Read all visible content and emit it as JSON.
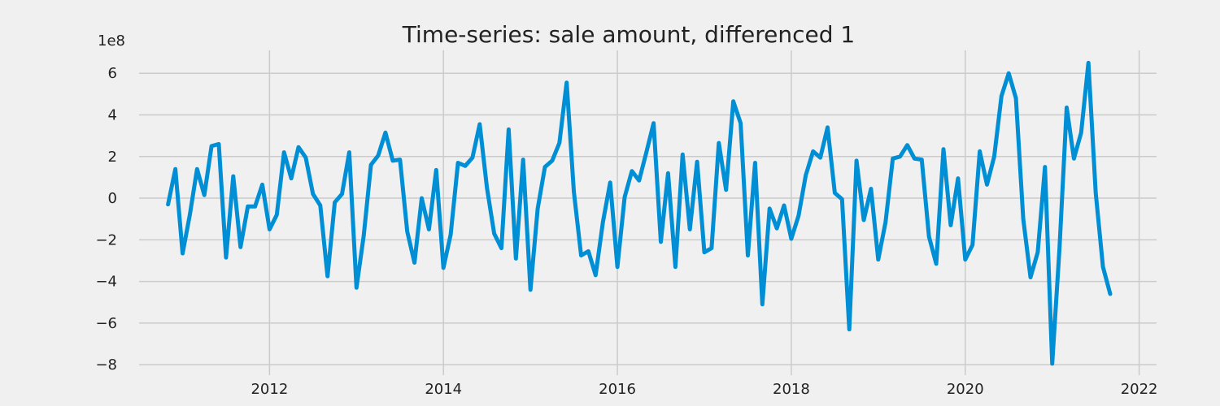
{
  "chart_data": {
    "type": "line",
    "title": "Time-series: sale amount, differenced 1",
    "xlabel": "",
    "ylabel": "",
    "y_scale_label": "1e8",
    "x_axis": "year",
    "xlim": [
      2010.5,
      2022.2
    ],
    "ylim": [
      -8.5,
      7.1
    ],
    "x_ticks": [
      2012,
      2014,
      2016,
      2018,
      2020,
      2022
    ],
    "y_ticks": [
      -8,
      -6,
      -4,
      -2,
      0,
      2,
      4,
      6
    ],
    "grid": true,
    "legend": "none",
    "colors": {
      "series": "#008fd5",
      "background": "#f0f0f0",
      "grid": "#cbcbcb"
    },
    "series": [
      {
        "x_start": "2010-11",
        "frequency": "monthly",
        "values": [
          -0.3,
          1.4,
          -2.65,
          -0.8,
          1.4,
          0.15,
          2.5,
          2.6,
          -2.85,
          1.05,
          -2.35,
          -0.4,
          -0.4,
          0.65,
          -1.5,
          -0.8,
          2.2,
          0.95,
          2.45,
          1.95,
          0.2,
          -0.35,
          -3.75,
          -0.2,
          0.2,
          2.2,
          -4.3,
          -1.8,
          1.6,
          2.05,
          3.15,
          1.8,
          1.85,
          -1.6,
          -3.1,
          0.0,
          -1.5,
          1.35,
          -3.35,
          -1.75,
          1.7,
          1.55,
          1.95,
          3.55,
          0.5,
          -1.7,
          -2.4,
          3.3,
          -2.9,
          1.85,
          -4.4,
          -0.5,
          1.5,
          1.8,
          2.65,
          5.55,
          0.3,
          -2.75,
          -2.55,
          -3.7,
          -1.15,
          0.75,
          -3.3,
          0.05,
          1.3,
          0.85,
          2.2,
          3.6,
          -2.1,
          1.2,
          -3.3,
          2.1,
          -1.5,
          1.75,
          -2.6,
          -2.4,
          2.65,
          0.4,
          4.65,
          3.6,
          -2.75,
          1.7,
          -5.1,
          -0.5,
          -1.45,
          -0.35,
          -1.95,
          -0.85,
          1.1,
          2.25,
          1.95,
          3.4,
          0.25,
          -0.05,
          -6.3,
          1.8,
          -1.05,
          0.45,
          -2.95,
          -1.15,
          1.9,
          2.0,
          2.55,
          1.9,
          1.85,
          -1.85,
          -3.15,
          2.35,
          -1.3,
          0.95,
          -2.95,
          -2.25,
          2.25,
          0.65,
          2.0,
          4.9,
          6.0,
          4.8,
          -1.0,
          -3.8,
          -2.6,
          1.5,
          -7.95,
          -2.45,
          4.35,
          1.9,
          3.15,
          6.5,
          0.25,
          -3.3,
          -4.6
        ]
      }
    ]
  }
}
